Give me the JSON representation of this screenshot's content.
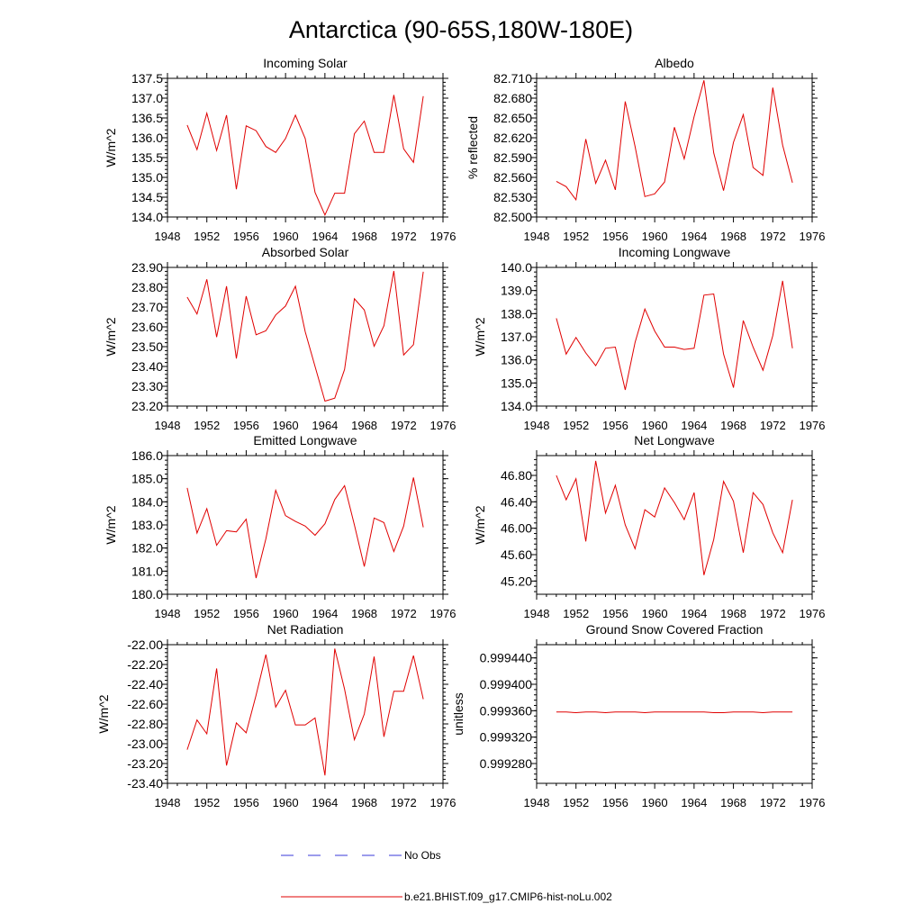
{
  "figure": {
    "title": "Antarctica (90-65S,180W-180E)",
    "colors": {
      "model_line": "#e00000",
      "obs_line": "#3a3ad8",
      "axis": "#000000"
    }
  },
  "legend": {
    "entries": [
      {
        "label": "No Obs",
        "style": "dashed",
        "color": "#3a3ad8"
      },
      {
        "label": "b.e21.BHIST.f09_g17.CMIP6-hist-noLu.002",
        "style": "solid",
        "color": "#e00000"
      }
    ]
  },
  "chart_data": [
    {
      "type": "line",
      "title": "Incoming Solar",
      "ylabel": "W/m^2",
      "xlim": [
        1948,
        1976
      ],
      "ylim": [
        134.0,
        137.5
      ],
      "xticks": [
        "1948",
        "1952",
        "1956",
        "1960",
        "1964",
        "1968",
        "1972",
        "1976"
      ],
      "yticks": [
        "134.0",
        "134.5",
        "135.0",
        "135.5",
        "136.0",
        "136.5",
        "137.0",
        "137.5"
      ],
      "x": [
        1950,
        1951,
        1952,
        1953,
        1954,
        1955,
        1956,
        1957,
        1958,
        1959,
        1960,
        1961,
        1962,
        1963,
        1964,
        1965,
        1966,
        1967,
        1968,
        1969,
        1970,
        1971,
        1972,
        1973,
        1974
      ],
      "series": [
        {
          "name": "b.e21.BHIST.f09_g17.CMIP6-hist-noLu.002",
          "values": [
            136.32,
            135.7,
            136.62,
            135.68,
            136.57,
            134.7,
            136.3,
            136.18,
            135.78,
            135.63,
            135.98,
            136.57,
            135.98,
            134.62,
            134.05,
            134.6,
            134.6,
            136.1,
            136.42,
            135.63,
            135.63,
            137.08,
            135.72,
            135.38,
            137.05
          ]
        }
      ]
    },
    {
      "type": "line",
      "title": "Albedo",
      "ylabel": "% reflected",
      "xlim": [
        1948,
        1976
      ],
      "ylim": [
        82.5,
        82.71
      ],
      "xticks": [
        "1948",
        "1952",
        "1956",
        "1960",
        "1964",
        "1968",
        "1972",
        "1976"
      ],
      "yticks": [
        "82.500",
        "82.530",
        "82.560",
        "82.590",
        "82.620",
        "82.650",
        "82.680",
        "82.710"
      ],
      "x": [
        1950,
        1951,
        1952,
        1953,
        1954,
        1955,
        1956,
        1957,
        1958,
        1959,
        1960,
        1961,
        1962,
        1963,
        1964,
        1965,
        1966,
        1967,
        1968,
        1969,
        1970,
        1971,
        1972,
        1973,
        1974
      ],
      "series": [
        {
          "name": "b.e21.BHIST.f09_g17.CMIP6-hist-noLu.002",
          "values": [
            82.554,
            82.546,
            82.526,
            82.618,
            82.551,
            82.586,
            82.541,
            82.675,
            82.607,
            82.531,
            82.535,
            82.553,
            82.636,
            82.588,
            82.652,
            82.707,
            82.597,
            82.54,
            82.613,
            82.655,
            82.575,
            82.563,
            82.696,
            82.609,
            82.552
          ]
        }
      ]
    },
    {
      "type": "line",
      "title": "Absorbed Solar",
      "ylabel": "W/m^2",
      "xlim": [
        1948,
        1976
      ],
      "ylim": [
        23.2,
        23.9
      ],
      "xticks": [
        "1948",
        "1952",
        "1956",
        "1960",
        "1964",
        "1968",
        "1972",
        "1976"
      ],
      "yticks": [
        "23.20",
        "23.30",
        "23.40",
        "23.50",
        "23.60",
        "23.70",
        "23.80",
        "23.90"
      ],
      "x": [
        1950,
        1951,
        1952,
        1953,
        1954,
        1955,
        1956,
        1957,
        1958,
        1959,
        1960,
        1961,
        1962,
        1963,
        1964,
        1965,
        1966,
        1967,
        1968,
        1969,
        1970,
        1971,
        1972,
        1973,
        1974
      ],
      "series": [
        {
          "name": "b.e21.BHIST.f09_g17.CMIP6-hist-noLu.002",
          "values": [
            23.75,
            23.665,
            23.84,
            23.548,
            23.805,
            23.44,
            23.755,
            23.56,
            23.58,
            23.66,
            23.705,
            23.805,
            23.575,
            23.4,
            23.225,
            23.24,
            23.385,
            23.742,
            23.685,
            23.502,
            23.605,
            23.882,
            23.458,
            23.51,
            23.878
          ]
        }
      ]
    },
    {
      "type": "line",
      "title": "Incoming Longwave",
      "ylabel": "W/m^2",
      "xlim": [
        1948,
        1976
      ],
      "ylim": [
        134.0,
        140.0
      ],
      "xticks": [
        "1948",
        "1952",
        "1956",
        "1960",
        "1964",
        "1968",
        "1972",
        "1976"
      ],
      "yticks": [
        "134.0",
        "135.0",
        "136.0",
        "137.0",
        "138.0",
        "139.0",
        "140.0"
      ],
      "x": [
        1950,
        1951,
        1952,
        1953,
        1954,
        1955,
        1956,
        1957,
        1958,
        1959,
        1960,
        1961,
        1962,
        1963,
        1964,
        1965,
        1966,
        1967,
        1968,
        1969,
        1970,
        1971,
        1972,
        1973,
        1974
      ],
      "series": [
        {
          "name": "b.e21.BHIST.f09_g17.CMIP6-hist-noLu.002",
          "values": [
            137.8,
            136.25,
            136.97,
            136.3,
            135.75,
            136.5,
            136.55,
            134.7,
            136.75,
            138.2,
            137.25,
            136.55,
            136.55,
            136.45,
            136.5,
            138.8,
            138.85,
            136.25,
            134.8,
            137.7,
            136.55,
            135.55,
            137.05,
            139.42,
            136.5
          ]
        }
      ]
    },
    {
      "type": "line",
      "title": "Emitted Longwave",
      "ylabel": "W/m^2",
      "xlim": [
        1948,
        1976
      ],
      "ylim": [
        180.0,
        186.0
      ],
      "xticks": [
        "1948",
        "1952",
        "1956",
        "1960",
        "1964",
        "1968",
        "1972",
        "1976"
      ],
      "yticks": [
        "180.0",
        "181.0",
        "182.0",
        "183.0",
        "184.0",
        "185.0",
        "186.0"
      ],
      "x": [
        1950,
        1951,
        1952,
        1953,
        1954,
        1955,
        1956,
        1957,
        1958,
        1959,
        1960,
        1961,
        1962,
        1963,
        1964,
        1965,
        1966,
        1967,
        1968,
        1969,
        1970,
        1971,
        1972,
        1973,
        1974
      ],
      "series": [
        {
          "name": "b.e21.BHIST.f09_g17.CMIP6-hist-noLu.002",
          "values": [
            184.6,
            182.65,
            183.7,
            182.12,
            182.75,
            182.7,
            183.25,
            180.7,
            182.4,
            184.5,
            183.4,
            183.15,
            182.95,
            182.55,
            183.05,
            184.1,
            184.7,
            183.0,
            181.2,
            183.3,
            183.1,
            181.85,
            182.95,
            185.05,
            182.9
          ]
        }
      ]
    },
    {
      "type": "line",
      "title": "Net Longwave",
      "ylabel": "W/m^2",
      "xlim": [
        1948,
        1976
      ],
      "ylim": [
        45.0,
        47.1
      ],
      "xticks": [
        "1948",
        "1952",
        "1956",
        "1960",
        "1964",
        "1968",
        "1972",
        "1976"
      ],
      "yticks": [
        "45.20",
        "45.60",
        "46.00",
        "46.40",
        "46.80"
      ],
      "x": [
        1950,
        1951,
        1952,
        1953,
        1954,
        1955,
        1956,
        1957,
        1958,
        1959,
        1960,
        1961,
        1962,
        1963,
        1964,
        1965,
        1966,
        1967,
        1968,
        1969,
        1970,
        1971,
        1972,
        1973,
        1974
      ],
      "series": [
        {
          "name": "b.e21.BHIST.f09_g17.CMIP6-hist-noLu.002",
          "values": [
            46.8,
            46.43,
            46.75,
            45.8,
            47.02,
            46.23,
            46.65,
            46.05,
            45.69,
            46.28,
            46.17,
            46.61,
            46.39,
            46.13,
            46.54,
            45.29,
            45.83,
            46.71,
            46.41,
            45.63,
            46.54,
            46.36,
            45.93,
            45.63,
            46.43
          ]
        }
      ]
    },
    {
      "type": "line",
      "title": "Net Radiation",
      "ylabel": "W/m^2",
      "xlim": [
        1948,
        1976
      ],
      "ylim": [
        -23.4,
        -22.0
      ],
      "xticks": [
        "1948",
        "1952",
        "1956",
        "1960",
        "1964",
        "1968",
        "1972",
        "1976"
      ],
      "yticks": [
        "-23.40",
        "-23.20",
        "-23.00",
        "-22.80",
        "-22.60",
        "-22.40",
        "-22.20",
        "-22.00"
      ],
      "x": [
        1950,
        1951,
        1952,
        1953,
        1954,
        1955,
        1956,
        1957,
        1958,
        1959,
        1960,
        1961,
        1962,
        1963,
        1964,
        1965,
        1966,
        1967,
        1968,
        1969,
        1970,
        1971,
        1972,
        1973,
        1974
      ],
      "series": [
        {
          "name": "b.e21.BHIST.f09_g17.CMIP6-hist-noLu.002",
          "values": [
            -23.06,
            -22.76,
            -22.9,
            -22.24,
            -23.22,
            -22.79,
            -22.89,
            -22.51,
            -22.1,
            -22.63,
            -22.46,
            -22.81,
            -22.81,
            -22.74,
            -23.32,
            -22.04,
            -22.45,
            -22.96,
            -22.7,
            -22.12,
            -22.93,
            -22.47,
            -22.47,
            -22.11,
            -22.55
          ]
        }
      ]
    },
    {
      "type": "line",
      "title": "Ground Snow Covered Fraction",
      "ylabel": "unitless",
      "xlim": [
        1948,
        1976
      ],
      "ylim": [
        0.99925,
        0.99946
      ],
      "xticks": [
        "1948",
        "1952",
        "1956",
        "1960",
        "1964",
        "1968",
        "1972",
        "1976"
      ],
      "yticks": [
        "0.999280",
        "0.999320",
        "0.999360",
        "0.999400",
        "0.999440"
      ],
      "x": [
        1950,
        1951,
        1952,
        1953,
        1954,
        1955,
        1956,
        1957,
        1958,
        1959,
        1960,
        1961,
        1962,
        1963,
        1964,
        1965,
        1966,
        1967,
        1968,
        1969,
        1970,
        1971,
        1972,
        1973,
        1974
      ],
      "series": [
        {
          "name": "b.e21.BHIST.f09_g17.CMIP6-hist-noLu.002",
          "values": [
            0.999358,
            0.999358,
            0.999357,
            0.999358,
            0.999358,
            0.999357,
            0.999358,
            0.999358,
            0.999358,
            0.999357,
            0.999358,
            0.999358,
            0.999358,
            0.999358,
            0.999358,
            0.999358,
            0.999357,
            0.999357,
            0.999358,
            0.999358,
            0.999358,
            0.999357,
            0.999358,
            0.999358,
            0.999358
          ]
        }
      ]
    }
  ]
}
